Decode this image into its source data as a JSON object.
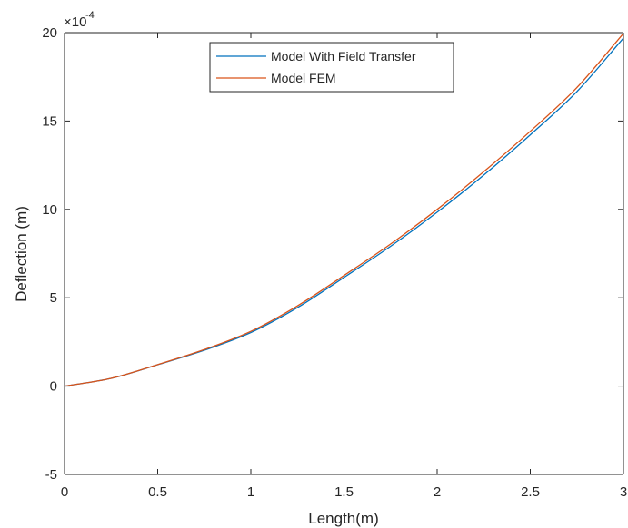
{
  "chart_data": {
    "type": "line",
    "title": "",
    "xlabel": "Length(m)",
    "ylabel": "Deflection (m)",
    "exponent_label": {
      "base": "×10",
      "power": "-4"
    },
    "xlim": [
      0,
      3
    ],
    "ylim": [
      -5,
      20
    ],
    "y_unit_scale": 0.0001,
    "x_ticks": [
      0,
      0.5,
      1,
      1.5,
      2,
      2.5,
      3
    ],
    "x_tick_labels": [
      "0",
      "0.5",
      "1",
      "1.5",
      "2",
      "2.5",
      "3"
    ],
    "y_ticks": [
      -5,
      0,
      5,
      10,
      15,
      20
    ],
    "y_tick_labels": [
      "-5",
      "0",
      "5",
      "10",
      "15",
      "20"
    ],
    "grid": false,
    "legend": {
      "position": "top-center"
    },
    "series": [
      {
        "name": "Model With Field Transfer",
        "color": "#0072BD",
        "x": [
          0,
          0.25,
          0.5,
          0.75,
          1,
          1.25,
          1.5,
          1.75,
          2,
          2.25,
          2.5,
          2.75,
          3
        ],
        "y": [
          0,
          0.44,
          1.21,
          2.03,
          3.03,
          4.44,
          6.15,
          7.91,
          9.84,
          11.94,
          14.22,
          16.66,
          19.69
        ]
      },
      {
        "name": "Model FEM",
        "color": "#D95319",
        "x": [
          0,
          0.25,
          0.5,
          0.75,
          1,
          1.25,
          1.5,
          1.75,
          2,
          2.25,
          2.5,
          2.75,
          3
        ],
        "y": [
          0,
          0.44,
          1.22,
          2.07,
          3.1,
          4.54,
          6.26,
          8.04,
          10.0,
          12.13,
          14.42,
          16.89,
          19.95
        ]
      }
    ]
  }
}
